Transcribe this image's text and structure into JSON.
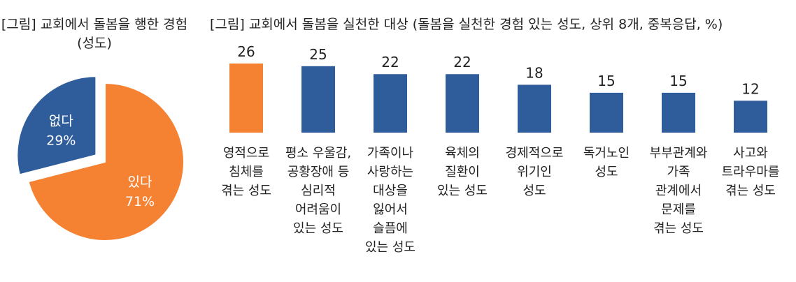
{
  "chart_data": [
    {
      "type": "pie",
      "title": "[그림] 교회에서 돌봄을 행한 경험 (성도)",
      "slices": [
        {
          "label": "있다",
          "value": 71,
          "value_text": "71%",
          "color": "#F58233"
        },
        {
          "label": "없다",
          "value": 29,
          "value_text": "29%",
          "color": "#2F5C9A"
        }
      ]
    },
    {
      "type": "bar",
      "title": "[그림] 교회에서 돌봄을 실천한 대상 (돌봄을 실천한 경험 있는 성도, 상위 8개, 중복응답, %)",
      "categories": [
        "영적으로\n침체를\n겪는 성도",
        "평소 우울감,\n공황장애 등\n심리적\n어려움이\n있는 성도",
        "가족이나\n사랑하는\n대상을\n잃어서\n슬픔에\n있는 성도",
        "육체의\n질환이\n있는 성도",
        "경제적으로\n위기인\n성도",
        "독거노인\n성도",
        "부부관계와\n가족\n관계에서\n문제를\n겪는 성도",
        "사고와\n트라우마를\n겪는 성도"
      ],
      "values": [
        26,
        25,
        22,
        22,
        18,
        15,
        15,
        12
      ],
      "colors": [
        "#F58233",
        "#2F5C9A",
        "#2F5C9A",
        "#2F5C9A",
        "#2F5C9A",
        "#2F5C9A",
        "#2F5C9A",
        "#2F5C9A"
      ],
      "ylim": [
        0,
        26
      ]
    }
  ]
}
